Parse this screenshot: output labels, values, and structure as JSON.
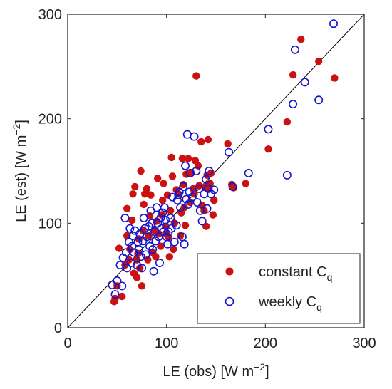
{
  "chart_data": {
    "type": "scatter",
    "xlabel": "LE (obs)",
    "xlabel_unit": "[W m",
    "xlabel_exp": "−2",
    "xlabel_close": "]",
    "ylabel": "LE (est)",
    "ylabel_unit": "[W m",
    "ylabel_exp": "−2",
    "ylabel_close": "]",
    "xlim": [
      0,
      300
    ],
    "ylim": [
      0,
      300
    ],
    "xticks": [
      "0",
      "100",
      "200",
      "300"
    ],
    "yticks": [
      "0",
      "100",
      "200",
      "300"
    ],
    "reference_line": "1:1",
    "grid": false,
    "legend_position": "bottom-right",
    "colors": {
      "constant": "#cc1111",
      "weekly": "#1515cc",
      "line": "#000000"
    },
    "series": [
      {
        "name": "constant C",
        "subscript": "q",
        "marker": "filled-circle",
        "points": [
          [
            47,
            25
          ],
          [
            48,
            28
          ],
          [
            50,
            40
          ],
          [
            52,
            76
          ],
          [
            55,
            30
          ],
          [
            58,
            60
          ],
          [
            60,
            88
          ],
          [
            60,
            114
          ],
          [
            62,
            65
          ],
          [
            63,
            75
          ],
          [
            65,
            103
          ],
          [
            66,
            128
          ],
          [
            67,
            52
          ],
          [
            68,
            135
          ],
          [
            70,
            48
          ],
          [
            70,
            65
          ],
          [
            71,
            71
          ],
          [
            72,
            85
          ],
          [
            73,
            57
          ],
          [
            74,
            150
          ],
          [
            75,
            40
          ],
          [
            76,
            93
          ],
          [
            77,
            118
          ],
          [
            78,
            128
          ],
          [
            80,
            133
          ],
          [
            81,
            65
          ],
          [
            82,
            88
          ],
          [
            83,
            107
          ],
          [
            84,
            127
          ],
          [
            86,
            72
          ],
          [
            88,
            93
          ],
          [
            89,
            68
          ],
          [
            90,
            102
          ],
          [
            91,
            143
          ],
          [
            92,
            90
          ],
          [
            94,
            78
          ],
          [
            95,
            108
          ],
          [
            96,
            122
          ],
          [
            97,
            138
          ],
          [
            99,
            97
          ],
          [
            100,
            90
          ],
          [
            101,
            127
          ],
          [
            102,
            87
          ],
          [
            103,
            68
          ],
          [
            104,
            112
          ],
          [
            105,
            163
          ],
          [
            106,
            145
          ],
          [
            107,
            75
          ],
          [
            108,
            100
          ],
          [
            110,
            132
          ],
          [
            112,
            128
          ],
          [
            114,
            88
          ],
          [
            115,
            110
          ],
          [
            116,
            162
          ],
          [
            117,
            137
          ],
          [
            118,
            115
          ],
          [
            119,
            98
          ],
          [
            120,
            147
          ],
          [
            122,
            162
          ],
          [
            124,
            120
          ],
          [
            125,
            148
          ],
          [
            127,
            133
          ],
          [
            128,
            128
          ],
          [
            129,
            160
          ],
          [
            130,
            241
          ],
          [
            132,
            155
          ],
          [
            133,
            136
          ],
          [
            135,
            178
          ],
          [
            136,
            117
          ],
          [
            138,
            112
          ],
          [
            139,
            135
          ],
          [
            140,
            97
          ],
          [
            141,
            146
          ],
          [
            142,
            180
          ],
          [
            143,
            133
          ],
          [
            144,
            138
          ],
          [
            145,
            148
          ],
          [
            147,
            108
          ],
          [
            148,
            122
          ],
          [
            162,
            176
          ],
          [
            166,
            137
          ],
          [
            168,
            134
          ],
          [
            180,
            138
          ],
          [
            203,
            171
          ],
          [
            222,
            197
          ],
          [
            228,
            242
          ],
          [
            236,
            276
          ],
          [
            254,
            255
          ],
          [
            270,
            239
          ]
        ]
      },
      {
        "name": "weekly C",
        "subscript": "q",
        "marker": "open-circle",
        "points": [
          [
            45,
            41
          ],
          [
            48,
            32
          ],
          [
            50,
            45
          ],
          [
            53,
            60
          ],
          [
            55,
            40
          ],
          [
            56,
            67
          ],
          [
            58,
            105
          ],
          [
            59,
            72
          ],
          [
            60,
            57
          ],
          [
            62,
            82
          ],
          [
            63,
            95
          ],
          [
            64,
            62
          ],
          [
            65,
            78
          ],
          [
            66,
            88
          ],
          [
            67,
            72
          ],
          [
            68,
            93
          ],
          [
            70,
            60
          ],
          [
            71,
            82
          ],
          [
            72,
            75
          ],
          [
            73,
            90
          ],
          [
            74,
            68
          ],
          [
            75,
            57
          ],
          [
            76,
            83
          ],
          [
            77,
            105
          ],
          [
            78,
            95
          ],
          [
            79,
            70
          ],
          [
            80,
            87
          ],
          [
            82,
            97
          ],
          [
            83,
            78
          ],
          [
            84,
            112
          ],
          [
            85,
            100
          ],
          [
            86,
            75
          ],
          [
            87,
            54
          ],
          [
            88,
            92
          ],
          [
            89,
            83
          ],
          [
            90,
            115
          ],
          [
            91,
            100
          ],
          [
            92,
            87
          ],
          [
            93,
            62
          ],
          [
            94,
            105
          ],
          [
            95,
            95
          ],
          [
            96,
            110
          ],
          [
            97,
            92
          ],
          [
            98,
            115
          ],
          [
            99,
            103
          ],
          [
            100,
            87
          ],
          [
            101,
            80
          ],
          [
            102,
            92
          ],
          [
            104,
            105
          ],
          [
            105,
            95
          ],
          [
            106,
            125
          ],
          [
            108,
            82
          ],
          [
            110,
            98
          ],
          [
            111,
            122
          ],
          [
            112,
            127
          ],
          [
            113,
            130
          ],
          [
            114,
            115
          ],
          [
            116,
            87
          ],
          [
            117,
            135
          ],
          [
            118,
            80
          ],
          [
            119,
            155
          ],
          [
            120,
            123
          ],
          [
            121,
            185
          ],
          [
            122,
            118
          ],
          [
            123,
            130
          ],
          [
            124,
            148
          ],
          [
            126,
            125
          ],
          [
            128,
            183
          ],
          [
            130,
            150
          ],
          [
            131,
            120
          ],
          [
            133,
            133
          ],
          [
            134,
            112
          ],
          [
            136,
            102
          ],
          [
            138,
            128
          ],
          [
            140,
            142
          ],
          [
            141,
            114
          ],
          [
            142,
            133
          ],
          [
            143,
            150
          ],
          [
            145,
            128
          ],
          [
            148,
            132
          ],
          [
            163,
            168
          ],
          [
            167,
            135
          ],
          [
            183,
            148
          ],
          [
            203,
            190
          ],
          [
            222,
            146
          ],
          [
            228,
            214
          ],
          [
            230,
            266
          ],
          [
            240,
            235
          ],
          [
            254,
            218
          ],
          [
            269,
            291
          ]
        ]
      }
    ]
  }
}
